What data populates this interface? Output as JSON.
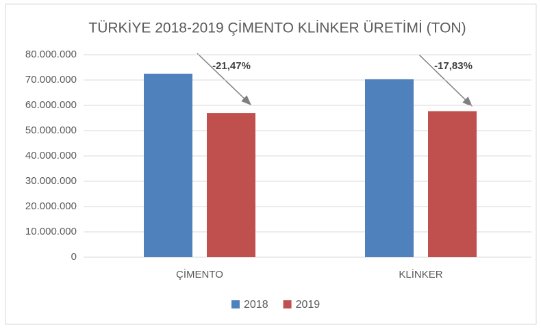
{
  "chart_data": {
    "type": "bar",
    "title": "TÜRKİYE 2018-2019 ÇİMENTO KLİNKER ÜRETİMİ (TON)",
    "categories": [
      "ÇİMENTO",
      "KLİNKER"
    ],
    "series": [
      {
        "name": "2018",
        "color": "#4f81bd",
        "values": [
          72500000,
          70300000
        ]
      },
      {
        "name": "2019",
        "color": "#c0504d",
        "values": [
          57000000,
          57700000
        ]
      }
    ],
    "annotations": [
      "-21,47%",
      "-17,83%"
    ],
    "ylim": [
      0,
      80000000
    ],
    "yticks": [
      0,
      {
        "value": 10000000,
        "label": "10.000.000"
      },
      {
        "value": 20000000,
        "label": "20.000.000"
      },
      {
        "value": 30000000,
        "label": "30.000.000"
      },
      {
        "value": 40000000,
        "label": "40.000.000"
      },
      {
        "value": 50000000,
        "label": "50.000.000"
      },
      {
        "value": 60000000,
        "label": "60.000.000"
      },
      {
        "value": 70000000,
        "label": "70.000.000"
      },
      {
        "value": 80000000,
        "label": "80.000.000"
      }
    ],
    "grid": true,
    "legend": "bottom"
  }
}
